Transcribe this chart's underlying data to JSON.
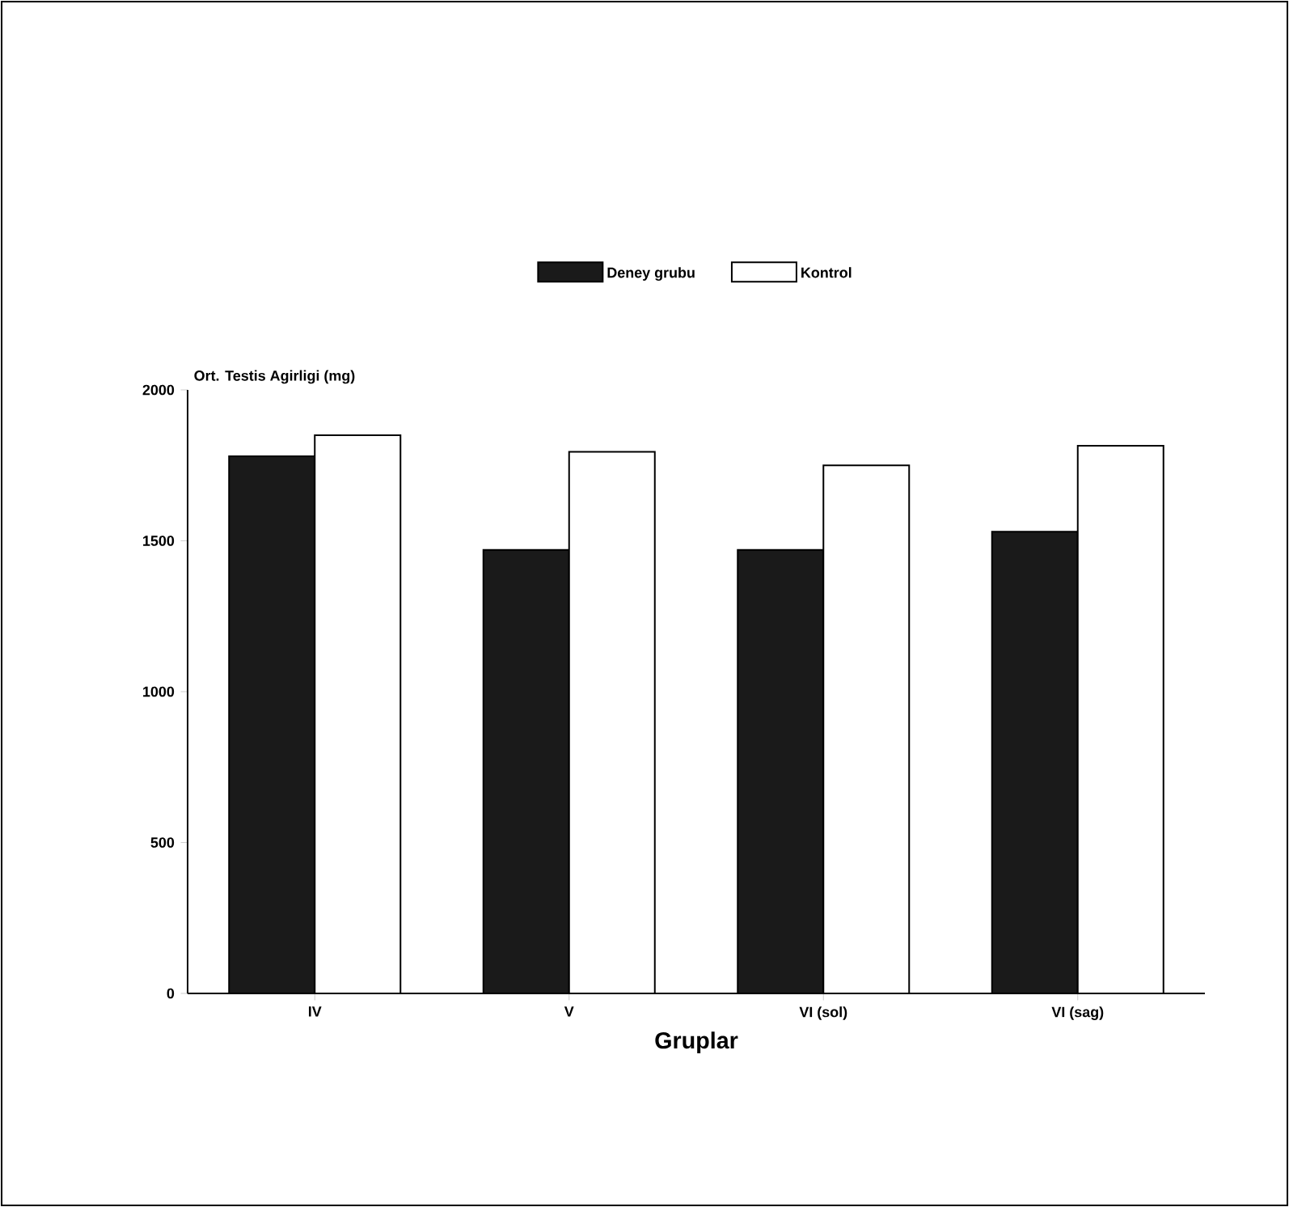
{
  "chart_data": {
    "type": "bar",
    "xlabel": "Gruplar",
    "ylabel": "Ort. Testis Agirligi (mg)",
    "categories": [
      "IV",
      "V",
      "VI (sol)",
      "VI (sag)"
    ],
    "series": [
      {
        "name": "Deney grubu",
        "color": "#1a1a1a",
        "values": [
          1780,
          1470,
          1470,
          1530
        ]
      },
      {
        "name": "Kontrol",
        "color": "#ffffff",
        "values": [
          1850,
          1795,
          1750,
          1815
        ]
      }
    ],
    "ylim": [
      0,
      2000
    ],
    "yticks": [
      0,
      500,
      1000,
      1500,
      2000
    ],
    "grid": false,
    "legend": "top"
  }
}
